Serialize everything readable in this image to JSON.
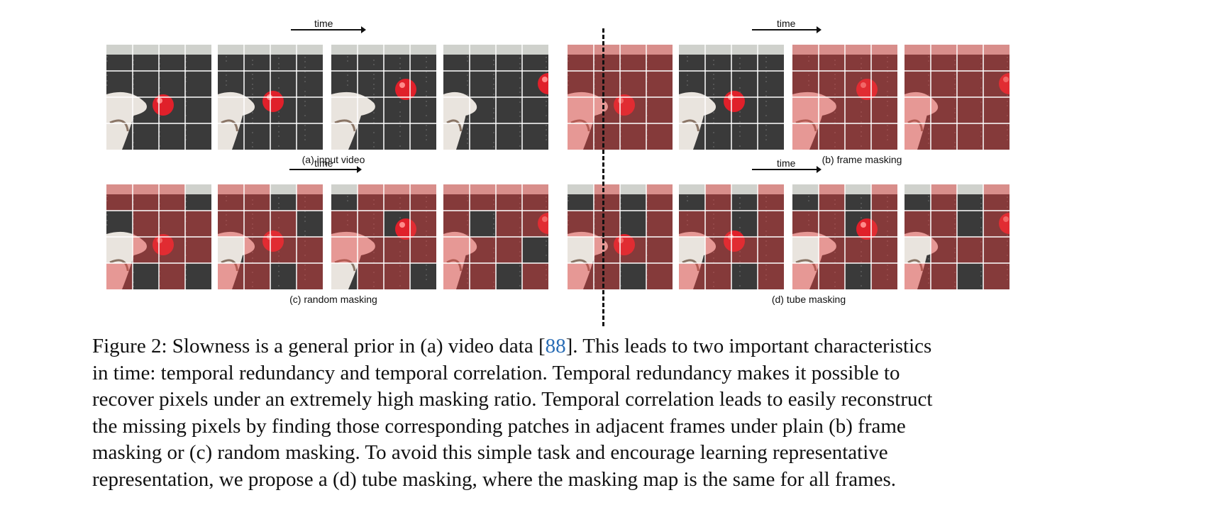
{
  "figure": {
    "time_label": "time",
    "panels": [
      {
        "id": "a",
        "caption": "(a) input video",
        "mask": "none"
      },
      {
        "id": "b",
        "caption": "(b) frame masking",
        "mask": "frame"
      },
      {
        "id": "c",
        "caption": "(c) random masking",
        "mask": "random"
      },
      {
        "id": "d",
        "caption": "(d) tube masking",
        "mask": "tube"
      }
    ],
    "frame_masks": {
      "b": [
        1,
        0,
        1,
        1
      ],
      "c": [
        [
          1,
          1,
          1,
          0,
          0,
          1,
          1,
          1,
          0,
          1,
          1,
          1,
          1,
          0,
          1,
          0
        ],
        [
          1,
          1,
          0,
          1,
          1,
          1,
          1,
          0,
          0,
          1,
          1,
          1,
          1,
          1,
          0,
          1
        ],
        [
          0,
          1,
          1,
          1,
          1,
          1,
          0,
          1,
          1,
          1,
          1,
          1,
          0,
          1,
          1,
          0
        ],
        [
          1,
          1,
          1,
          1,
          1,
          0,
          1,
          1,
          1,
          1,
          1,
          0,
          1,
          1,
          0,
          1
        ]
      ],
      "d": [
        0,
        1,
        0,
        1,
        1,
        1,
        0,
        1,
        0,
        1,
        1,
        1,
        1,
        1,
        0,
        1
      ]
    },
    "colors": {
      "mask_tint": "#e23b3b",
      "ball": "#e0202a",
      "grid_line": "#ffffff"
    }
  },
  "caption": {
    "lines": [
      {
        "pre": "Figure 2: Slowness is a general prior in (a) video data [",
        "ref": "88",
        "post": "]. This leads to two important characteristics"
      },
      {
        "pre": "in time: temporal redundancy and temporal correlation. Temporal redundancy makes it possible to"
      },
      {
        "pre": "recover pixels under an extremely high masking ratio. Temporal correlation leads to easily reconstruct"
      },
      {
        "pre": "the missing pixels by finding those corresponding patches in adjacent frames under plain (b) frame"
      },
      {
        "pre": "masking or (c) random masking. To avoid this simple task and encourage learning representative"
      },
      {
        "pre": "representation, we propose a (d) tube masking, where the masking map is the same for all frames."
      }
    ]
  }
}
